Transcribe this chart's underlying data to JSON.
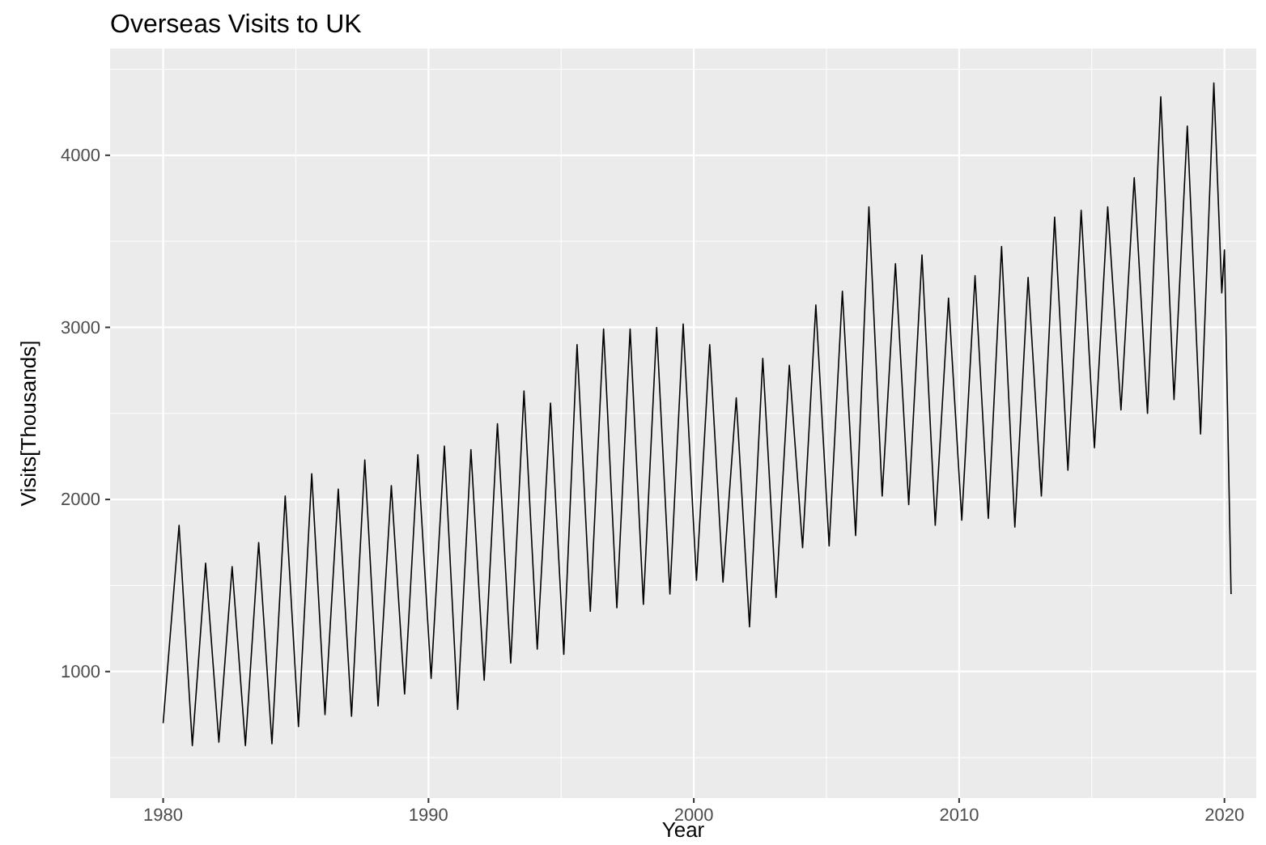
{
  "chart_data": {
    "type": "line",
    "title": "Overseas Visits to UK",
    "xlabel": "Year",
    "ylabel": "Visits[Thousands]",
    "x": [
      1980.0,
      1980.6,
      1981.1,
      1981.6,
      1982.1,
      1982.6,
      1983.1,
      1983.6,
      1984.1,
      1984.6,
      1985.1,
      1985.6,
      1986.1,
      1986.6,
      1987.1,
      1987.6,
      1988.1,
      1988.6,
      1989.1,
      1989.6,
      1990.1,
      1990.6,
      1991.1,
      1991.6,
      1992.1,
      1992.6,
      1993.1,
      1993.6,
      1994.1,
      1994.6,
      1995.1,
      1995.6,
      1996.1,
      1996.6,
      1997.1,
      1997.6,
      1998.1,
      1998.6,
      1999.1,
      1999.6,
      2000.1,
      2000.6,
      2001.1,
      2001.6,
      2002.1,
      2002.6,
      2003.1,
      2003.6,
      2004.1,
      2004.6,
      2005.1,
      2005.6,
      2006.1,
      2006.6,
      2007.1,
      2007.6,
      2008.1,
      2008.6,
      2009.1,
      2009.6,
      2010.1,
      2010.6,
      2011.1,
      2011.6,
      2012.1,
      2012.6,
      2013.1,
      2013.6,
      2014.1,
      2014.6,
      2015.1,
      2015.6,
      2016.1,
      2016.6,
      2017.1,
      2017.6,
      2018.1,
      2018.6,
      2019.1,
      2019.6,
      2019.9,
      2020.0,
      2020.25
    ],
    "series": [
      {
        "color": "#000000",
        "values": [
          700,
          1850,
          570,
          1630,
          590,
          1610,
          570,
          1750,
          580,
          2020,
          680,
          2150,
          750,
          2060,
          740,
          2230,
          800,
          2080,
          870,
          2260,
          960,
          2310,
          780,
          2290,
          950,
          2440,
          1050,
          2630,
          1130,
          2560,
          1100,
          2900,
          1350,
          2990,
          1370,
          2990,
          1390,
          3000,
          1450,
          3020,
          1530,
          2900,
          1520,
          2590,
          1260,
          2820,
          1430,
          2780,
          1720,
          3130,
          1730,
          3210,
          1790,
          3700,
          2020,
          3370,
          1970,
          3420,
          1850,
          3170,
          1880,
          3300,
          1890,
          3470,
          1840,
          3290,
          2020,
          3640,
          2170,
          3680,
          2300,
          3700,
          2520,
          3870,
          2500,
          4340,
          2580,
          4170,
          2380,
          4420,
          3200,
          3450,
          1450
        ]
      }
    ],
    "xlim": [
      1978,
      2021.2
    ],
    "ylim": [
      265,
      4620
    ],
    "xticks": [
      1980,
      1990,
      2000,
      2010,
      2020
    ],
    "yticks": [
      1000,
      2000,
      3000,
      4000
    ],
    "grid": true
  }
}
